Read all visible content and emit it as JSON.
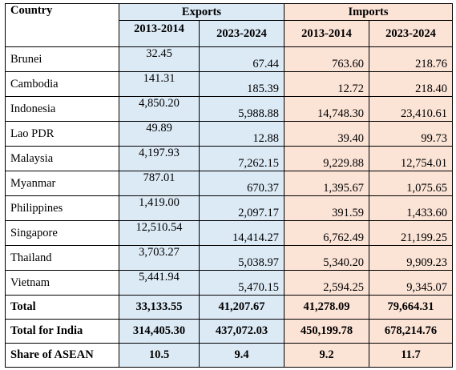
{
  "header": {
    "country": "Country",
    "exports": "Exports",
    "imports": "Imports",
    "years": [
      "2013-2014",
      "2023-2024",
      "2013-2014",
      "2023-2024"
    ]
  },
  "rows": [
    {
      "country": "Brunei",
      "values": [
        "32.45",
        "67.44",
        "763.60",
        "218.76"
      ]
    },
    {
      "country": "Cambodia",
      "values": [
        "141.31",
        "185.39",
        "12.72",
        "218.40"
      ]
    },
    {
      "country": "Indonesia",
      "values": [
        "4,850.20",
        "5,988.88",
        "14,748.30",
        "23,410.61"
      ]
    },
    {
      "country": "Lao PDR",
      "values": [
        "49.89",
        "12.88",
        "39.40",
        "99.73"
      ]
    },
    {
      "country": "Malaysia",
      "values": [
        "4,197.93",
        "7,262.15",
        "9,229.88",
        "12,754.01"
      ]
    },
    {
      "country": "Myanmar",
      "values": [
        "787.01",
        "670.37",
        "1,395.67",
        "1,075.65"
      ]
    },
    {
      "country": "Philippines",
      "values": [
        "1,419.00",
        "2,097.17",
        "391.59",
        "1,433.60"
      ]
    },
    {
      "country": "Singapore",
      "values": [
        "12,510.54",
        "14,414.27",
        "6,762.49",
        "21,199.25"
      ]
    },
    {
      "country": "Thailand",
      "values": [
        "3,703.27",
        "5,038.97",
        "5,340.20",
        "9,909.23"
      ]
    },
    {
      "country": "Vietnam",
      "values": [
        "5,441.94",
        "5,470.15",
        "2,594.25",
        "9,345.07"
      ]
    }
  ],
  "totals": [
    {
      "label": "Total",
      "values": [
        "33,133.55",
        "41,207.67",
        "41,278.09",
        "79,664.31"
      ]
    },
    {
      "label": "Total for India",
      "values": [
        "314,405.30",
        "437,072.03",
        "450,199.78",
        "678,214.76"
      ]
    },
    {
      "label": "Share of ASEAN",
      "values": [
        "10.5",
        "9.4",
        "9.2",
        "11.7"
      ]
    }
  ],
  "colors": {
    "exports_bg": "#dceaf6",
    "imports_bg": "#fbe3d6"
  }
}
